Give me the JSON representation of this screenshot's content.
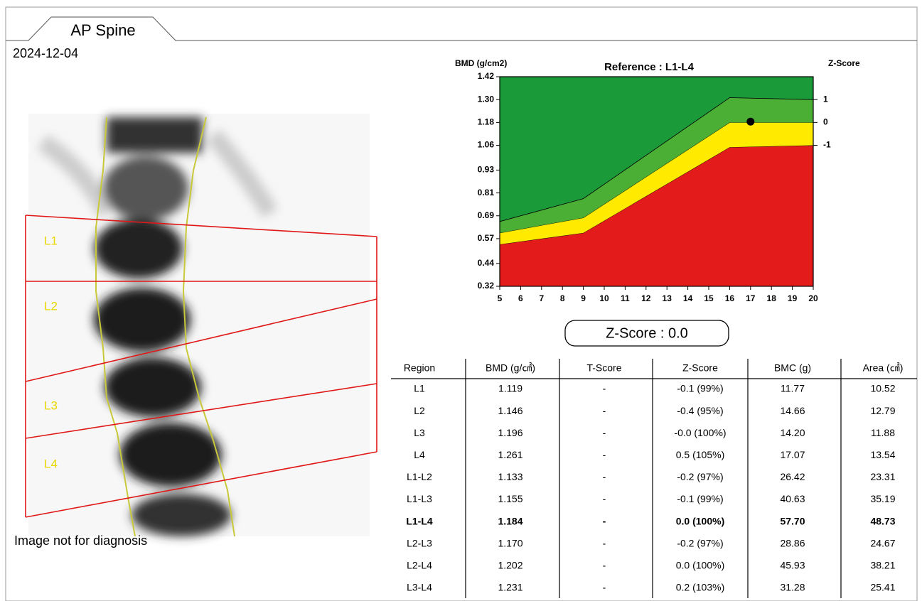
{
  "tab": "AP Spine",
  "date": "2024-12-04",
  "image": {
    "labels": [
      "L1",
      "L2",
      "L3",
      "L4"
    ],
    "note": "Image not for diagnosis"
  },
  "chart_data": {
    "type": "area",
    "title": "Reference : L1-L4",
    "y_label": "BMD (g/cm2)",
    "y2_label": "Z-Score",
    "x": [
      5,
      9,
      16,
      20
    ],
    "xlim": [
      5,
      20
    ],
    "xticks": [
      5,
      6,
      7,
      8,
      9,
      10,
      11,
      12,
      13,
      14,
      15,
      16,
      17,
      18,
      19,
      20
    ],
    "ylim": [
      0.32,
      1.42
    ],
    "yticks": [
      {
        "value": 1.42,
        "label": "1.42"
      },
      {
        "value": 1.3,
        "label": "1.30"
      },
      {
        "value": 1.18,
        "label": "1.18"
      },
      {
        "value": 1.06,
        "label": "1.06"
      },
      {
        "value": 0.93,
        "label": "0.93"
      },
      {
        "value": 0.81,
        "label": "0.81"
      },
      {
        "value": 0.69,
        "label": "0.69"
      },
      {
        "value": 0.57,
        "label": "0.57"
      },
      {
        "value": 0.44,
        "label": "0.44"
      },
      {
        "value": 0.32,
        "label": "0.32"
      }
    ],
    "y2lim": [
      -7.17,
      2
    ],
    "y2ticks": [
      1,
      0,
      -1
    ],
    "background": "#1b9a3a",
    "series": [
      {
        "color": "#e31b1b",
        "values": [
          0.54,
          0.6,
          1.05,
          1.06
        ]
      },
      {
        "color": "#ffea00",
        "values": [
          0.6,
          0.68,
          1.18,
          1.18
        ]
      },
      {
        "color": "#4caf35",
        "values": [
          0.66,
          0.78,
          1.31,
          1.3
        ]
      }
    ],
    "point": {
      "x": 17,
      "value": 1.184,
      "color": "#000000"
    }
  },
  "zscore_box": "Z-Score : 0.0",
  "table": {
    "header": [
      "Region",
      "BMD (g/㎠)",
      "T-Score",
      "Z-Score",
      "BMC (g)",
      "Area (㎠)"
    ],
    "rows": [
      [
        "L1",
        "1.119",
        "-",
        "-0.1 (99%)",
        "11.77",
        "10.52"
      ],
      [
        "L2",
        "1.146",
        "-",
        "-0.4 (95%)",
        "14.66",
        "12.79"
      ],
      [
        "L3",
        "1.196",
        "-",
        "-0.0 (100%)",
        "14.20",
        "11.88"
      ],
      [
        "L4",
        "1.261",
        "-",
        "0.5 (105%)",
        "17.07",
        "13.54"
      ],
      [
        "L1-L2",
        "1.133",
        "-",
        "-0.2 (97%)",
        "26.42",
        "23.31"
      ],
      [
        "L1-L3",
        "1.155",
        "-",
        "-0.1 (99%)",
        "40.63",
        "35.19"
      ],
      [
        "L1-L4",
        "1.184",
        "-",
        "0.0 (100%)",
        "57.70",
        "48.73"
      ],
      [
        "L2-L3",
        "1.170",
        "-",
        "-0.2 (97%)",
        "28.86",
        "24.67"
      ],
      [
        "L2-L4",
        "1.202",
        "-",
        "0.0 (100%)",
        "45.93",
        "38.21"
      ],
      [
        "L3-L4",
        "1.231",
        "-",
        "0.2 (103%)",
        "31.28",
        "25.41"
      ]
    ]
  }
}
